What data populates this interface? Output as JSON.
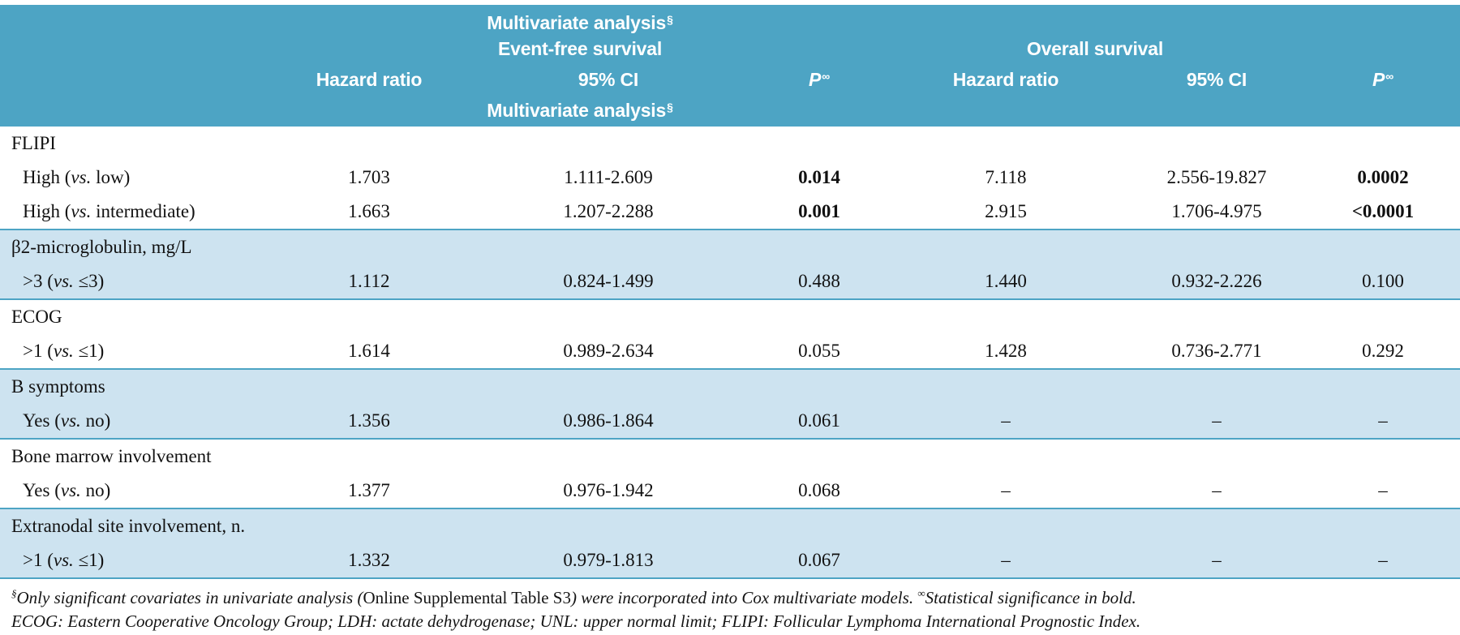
{
  "colors": {
    "header_bg": "#4da4c4",
    "stripe_bg": "#cde3f0",
    "rule": "#4da4c4"
  },
  "header": {
    "efs": {
      "multivariate": "Multivariate analysis",
      "multivariate_sup": "§",
      "survival": "Event-free survival",
      "multivariate_bottom": "Multivariate analysis",
      "multivariate_bottom_sup": "§"
    },
    "os": {
      "survival": "Overall survival"
    },
    "cols": {
      "hazard_ratio": "Hazard ratio",
      "ci": "95% CI",
      "p": "P",
      "p_sup": "∞"
    }
  },
  "sections": [
    {
      "label": "FLIPI",
      "rows": [
        {
          "label_a": "High (",
          "label_vs": "vs.",
          "label_b": " low)",
          "efs_hr": "1.703",
          "efs_ci": "1.111-2.609",
          "efs_p": "0.014",
          "os_hr": "7.118",
          "os_ci": "2.556-19.827",
          "os_p": "0.0002"
        },
        {
          "label_a": "High (",
          "label_vs": "vs.",
          "label_b": " intermediate)",
          "efs_hr": "1.663",
          "efs_ci": "1.207-2.288",
          "efs_p": "0.001",
          "os_hr": "2.915",
          "os_ci": "1.706-4.975",
          "os_p": "<0.0001"
        }
      ]
    },
    {
      "label": "β2-microglobulin, mg/L",
      "rows": [
        {
          "label_a": ">3 (",
          "label_vs": "vs.",
          "label_b": " ≤3)",
          "efs_hr": "1.112",
          "efs_ci": "0.824-1.499",
          "efs_p": "0.488",
          "os_hr": "1.440",
          "os_ci": "0.932-2.226",
          "os_p": "0.100"
        }
      ]
    },
    {
      "label": "ECOG",
      "rows": [
        {
          "label_a": ">1 (",
          "label_vs": "vs.",
          "label_b": " ≤1)",
          "efs_hr": "1.614",
          "efs_ci": "0.989-2.634",
          "efs_p": "0.055",
          "os_hr": "1.428",
          "os_ci": "0.736-2.771",
          "os_p": "0.292"
        }
      ]
    },
    {
      "label": "B symptoms",
      "rows": [
        {
          "label_a": "Yes (",
          "label_vs": "vs.",
          "label_b": " no)",
          "efs_hr": "1.356",
          "efs_ci": "0.986-1.864",
          "efs_p": "0.061",
          "os_hr": "–",
          "os_ci": "–",
          "os_p": "–"
        }
      ]
    },
    {
      "label": "Bone marrow involvement",
      "rows": [
        {
          "label_a": "Yes (",
          "label_vs": "vs.",
          "label_b": " no)",
          "efs_hr": "1.377",
          "efs_ci": "0.976-1.942",
          "efs_p": "0.068",
          "os_hr": "–",
          "os_ci": "–",
          "os_p": "–"
        }
      ]
    },
    {
      "label": "Extranodal site involvement, n.",
      "rows": [
        {
          "label_a": ">1 (",
          "label_vs": "vs.",
          "label_b": " ≤1)",
          "efs_hr": "1.332",
          "efs_ci": "0.979-1.813",
          "efs_p": "0.067",
          "os_hr": "–",
          "os_ci": "–",
          "os_p": "–"
        }
      ]
    }
  ],
  "footnotes": {
    "line1_sup": "§",
    "line1_a": "Only significant covariates in univariate analysis (",
    "line1_roman": "Online Supplemental Table S3",
    "line1_b": ") were incorporated into Cox multivariate models. ",
    "line1_sup2": "∞",
    "line1_c": "Statistical significance in bold.",
    "line2": "ECOG: Eastern Cooperative Oncology Group; LDH: actate dehydrogenase; UNL: upper normal limit; FLIPI: Follicular Lymphoma International Prognostic Index."
  }
}
